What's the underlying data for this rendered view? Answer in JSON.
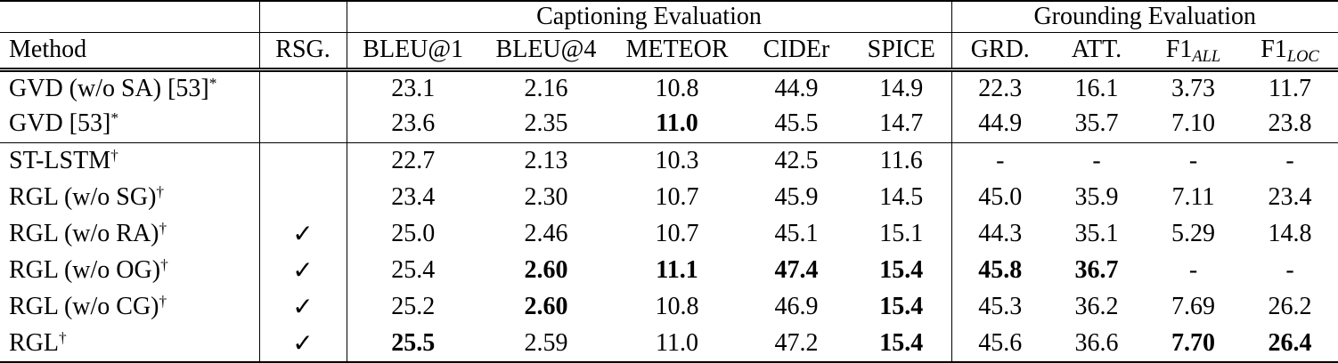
{
  "page": {
    "background": "#ffffff",
    "text_color": "#000000",
    "rule_color": "#000000"
  },
  "table": {
    "span_header": {
      "captioning": "Captioning Evaluation",
      "grounding": "Grounding Evaluation"
    },
    "columns": [
      {
        "label": "Method"
      },
      {
        "label": "RSG."
      },
      {
        "label": "BLEU@1"
      },
      {
        "label": "BLEU@4"
      },
      {
        "label": "METEOR"
      },
      {
        "label": "CIDEr"
      },
      {
        "label": "SPICE"
      },
      {
        "label": "GRD."
      },
      {
        "label": "ATT."
      },
      {
        "label": "F1",
        "sub": "ALL"
      },
      {
        "label": "F1",
        "sub": "LOC"
      }
    ],
    "checkmark_glyph": "✓",
    "rows": [
      {
        "method": "GVD (w/o SA) [53]",
        "method_sup": "*",
        "rsg": false,
        "group_end": false,
        "values": [
          {
            "v": "23.1"
          },
          {
            "v": "2.16"
          },
          {
            "v": "10.8"
          },
          {
            "v": "44.9"
          },
          {
            "v": "14.9"
          },
          {
            "v": "22.3"
          },
          {
            "v": "16.1"
          },
          {
            "v": "3.73"
          },
          {
            "v": "11.7"
          }
        ]
      },
      {
        "method": "GVD [53]",
        "method_sup": "*",
        "rsg": false,
        "group_end": true,
        "values": [
          {
            "v": "23.6"
          },
          {
            "v": "2.35"
          },
          {
            "v": "11.0",
            "b": true
          },
          {
            "v": "45.5"
          },
          {
            "v": "14.7"
          },
          {
            "v": "44.9"
          },
          {
            "v": "35.7"
          },
          {
            "v": "7.10"
          },
          {
            "v": "23.8"
          }
        ]
      },
      {
        "method": "ST-LSTM",
        "method_sup": "†",
        "rsg": false,
        "group_end": false,
        "values": [
          {
            "v": "22.7"
          },
          {
            "v": "2.13"
          },
          {
            "v": "10.3"
          },
          {
            "v": "42.5"
          },
          {
            "v": "11.6"
          },
          {
            "v": "-"
          },
          {
            "v": "-"
          },
          {
            "v": "-"
          },
          {
            "v": "-"
          }
        ]
      },
      {
        "method": "RGL (w/o SG)",
        "method_sup": "†",
        "rsg": false,
        "group_end": false,
        "values": [
          {
            "v": "23.4"
          },
          {
            "v": "2.30"
          },
          {
            "v": "10.7"
          },
          {
            "v": "45.9"
          },
          {
            "v": "14.5"
          },
          {
            "v": "45.0"
          },
          {
            "v": "35.9"
          },
          {
            "v": "7.11"
          },
          {
            "v": "23.4"
          }
        ]
      },
      {
        "method": "RGL (w/o RA)",
        "method_sup": "†",
        "rsg": true,
        "group_end": false,
        "values": [
          {
            "v": "25.0"
          },
          {
            "v": "2.46"
          },
          {
            "v": "10.7"
          },
          {
            "v": "45.1"
          },
          {
            "v": "15.1"
          },
          {
            "v": "44.3"
          },
          {
            "v": "35.1"
          },
          {
            "v": "5.29"
          },
          {
            "v": "14.8"
          }
        ]
      },
      {
        "method": "RGL (w/o OG)",
        "method_sup": "†",
        "rsg": true,
        "group_end": false,
        "values": [
          {
            "v": "25.4"
          },
          {
            "v": "2.60",
            "b": true
          },
          {
            "v": "11.1",
            "b": true
          },
          {
            "v": "47.4",
            "b": true
          },
          {
            "v": "15.4",
            "b": true
          },
          {
            "v": "45.8",
            "b": true
          },
          {
            "v": "36.7",
            "b": true
          },
          {
            "v": "-"
          },
          {
            "v": "-"
          }
        ]
      },
      {
        "method": "RGL (w/o CG)",
        "method_sup": "†",
        "rsg": true,
        "group_end": false,
        "values": [
          {
            "v": "25.2"
          },
          {
            "v": "2.60",
            "b": true
          },
          {
            "v": "10.8"
          },
          {
            "v": "46.9"
          },
          {
            "v": "15.4",
            "b": true
          },
          {
            "v": "45.3"
          },
          {
            "v": "36.2"
          },
          {
            "v": "7.69"
          },
          {
            "v": "26.2"
          }
        ]
      },
      {
        "method": "RGL",
        "method_sup": "†",
        "rsg": true,
        "group_end": false,
        "values": [
          {
            "v": "25.5",
            "b": true
          },
          {
            "v": "2.59"
          },
          {
            "v": "11.0"
          },
          {
            "v": "47.2"
          },
          {
            "v": "15.4",
            "b": true
          },
          {
            "v": "45.6"
          },
          {
            "v": "36.6"
          },
          {
            "v": "7.70",
            "b": true
          },
          {
            "v": "26.4",
            "b": true
          }
        ]
      }
    ]
  }
}
